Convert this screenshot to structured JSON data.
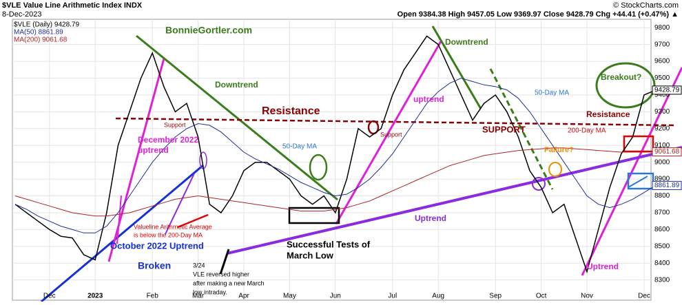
{
  "chart_data": {
    "type": "line",
    "title": "$VLE Value Line Arithmetic Index INDX",
    "date": "8-Dec-2023",
    "source": "© StockCharts.com",
    "quote": "Open 9384.38 High 9457.05 Low 9369.97 Close 9428.79 Chg +44.41 (+0.47%) ▲",
    "categories": [
      null,
      null,
      null,
      "Dec",
      null,
      null,
      null,
      "2023",
      null,
      null,
      null,
      null,
      "Feb",
      null,
      null,
      null,
      "Mar",
      null,
      null,
      null,
      "Apr",
      null,
      null,
      null,
      "May",
      null,
      null,
      null,
      "Jun",
      null,
      null,
      null,
      null,
      "Jul",
      null,
      null,
      null,
      "Aug",
      null,
      null,
      null,
      null,
      "Sep",
      null,
      null,
      null,
      "Oct",
      null,
      null,
      null,
      "Nov",
      null,
      null,
      null,
      null,
      "Dec",
      null
    ],
    "series": [
      {
        "name": "$VLE (Daily) 9428.79",
        "color": "#000000",
        "values": [
          8750,
          8700,
          8650,
          8600,
          8560,
          8550,
          8450,
          8420,
          8700,
          9100,
          9300,
          9500,
          9650,
          9450,
          9300,
          9350,
          9150,
          8750,
          8700,
          8800,
          8950,
          9000,
          9000,
          8950,
          8900,
          8800,
          8750,
          8800,
          8700,
          8900,
          9200,
          9150,
          9200,
          9400,
          9550,
          9650,
          9750,
          9700,
          9550,
          9400,
          9250,
          9350,
          9400,
          9300,
          9150,
          8950,
          8850,
          8700,
          8750,
          8550,
          8350,
          8600,
          8850,
          9050,
          9150,
          9400,
          9428.79
        ]
      },
      {
        "name": "MA(50) 8861.89",
        "color": "#1f2f9c",
        "values": [
          8750,
          8720,
          8680,
          8650,
          8620,
          8600,
          8580,
          8580,
          8620,
          8700,
          8800,
          8900,
          9000,
          9080,
          9150,
          9200,
          9230,
          9220,
          9180,
          9120,
          9060,
          9020,
          8990,
          8960,
          8920,
          8880,
          8850,
          8820,
          8800,
          8810,
          8850,
          8900,
          8970,
          9050,
          9150,
          9250,
          9350,
          9420,
          9470,
          9500,
          9480,
          9460,
          9450,
          9430,
          9380,
          9300,
          9200,
          9100,
          9000,
          8900,
          8800,
          8750,
          8730,
          8750,
          8780,
          8820,
          8861.89
        ]
      },
      {
        "name": "MA(200) 9061.68",
        "color": "#b22222",
        "values": [
          8800,
          8780,
          8760,
          8740,
          8720,
          8700,
          8690,
          8680,
          8680,
          8690,
          8700,
          8720,
          8740,
          8760,
          8780,
          8790,
          8800,
          8790,
          8780,
          8770,
          8760,
          8750,
          8740,
          8730,
          8720,
          8710,
          8710,
          8710,
          8720,
          8730,
          8750,
          8770,
          8800,
          8830,
          8860,
          8890,
          8920,
          8950,
          8980,
          9000,
          9020,
          9040,
          9050,
          9060,
          9070,
          9075,
          9080,
          9085,
          9085,
          9080,
          9075,
          9070,
          9065,
          9060,
          9060,
          9060,
          9061.68
        ]
      }
    ],
    "end_labels": [
      "9428.79",
      "8861.89",
      "9061.68"
    ],
    "ylim": [
      8180,
      9850
    ],
    "yticks": [
      8300,
      8400,
      8500,
      8600,
      8700,
      8800,
      8900,
      9000,
      9100,
      9200,
      9300,
      9400,
      9500,
      9600,
      9700,
      9800
    ],
    "grid": true,
    "annotations": [
      "BonnieGortler.com",
      "Downtrend",
      "Downtrend",
      "Resistance",
      "Support",
      "Support",
      "SUPPORT",
      "Resistance",
      "200-Day MA",
      "50-Day MA",
      "50-Day MA",
      "December 2022",
      "uptrend",
      "uptrend",
      "Uptrend",
      "Uptrend",
      "Failure?",
      "Breakout?",
      "Valueline Arithmetic Average",
      "is below the 200-Day MA",
      "October 2022 Uptrend",
      "Broken",
      "Successful Tests of",
      "March Low",
      "3/24",
      "VLE reversed higher",
      "after making a new March",
      "low intraday."
    ]
  }
}
